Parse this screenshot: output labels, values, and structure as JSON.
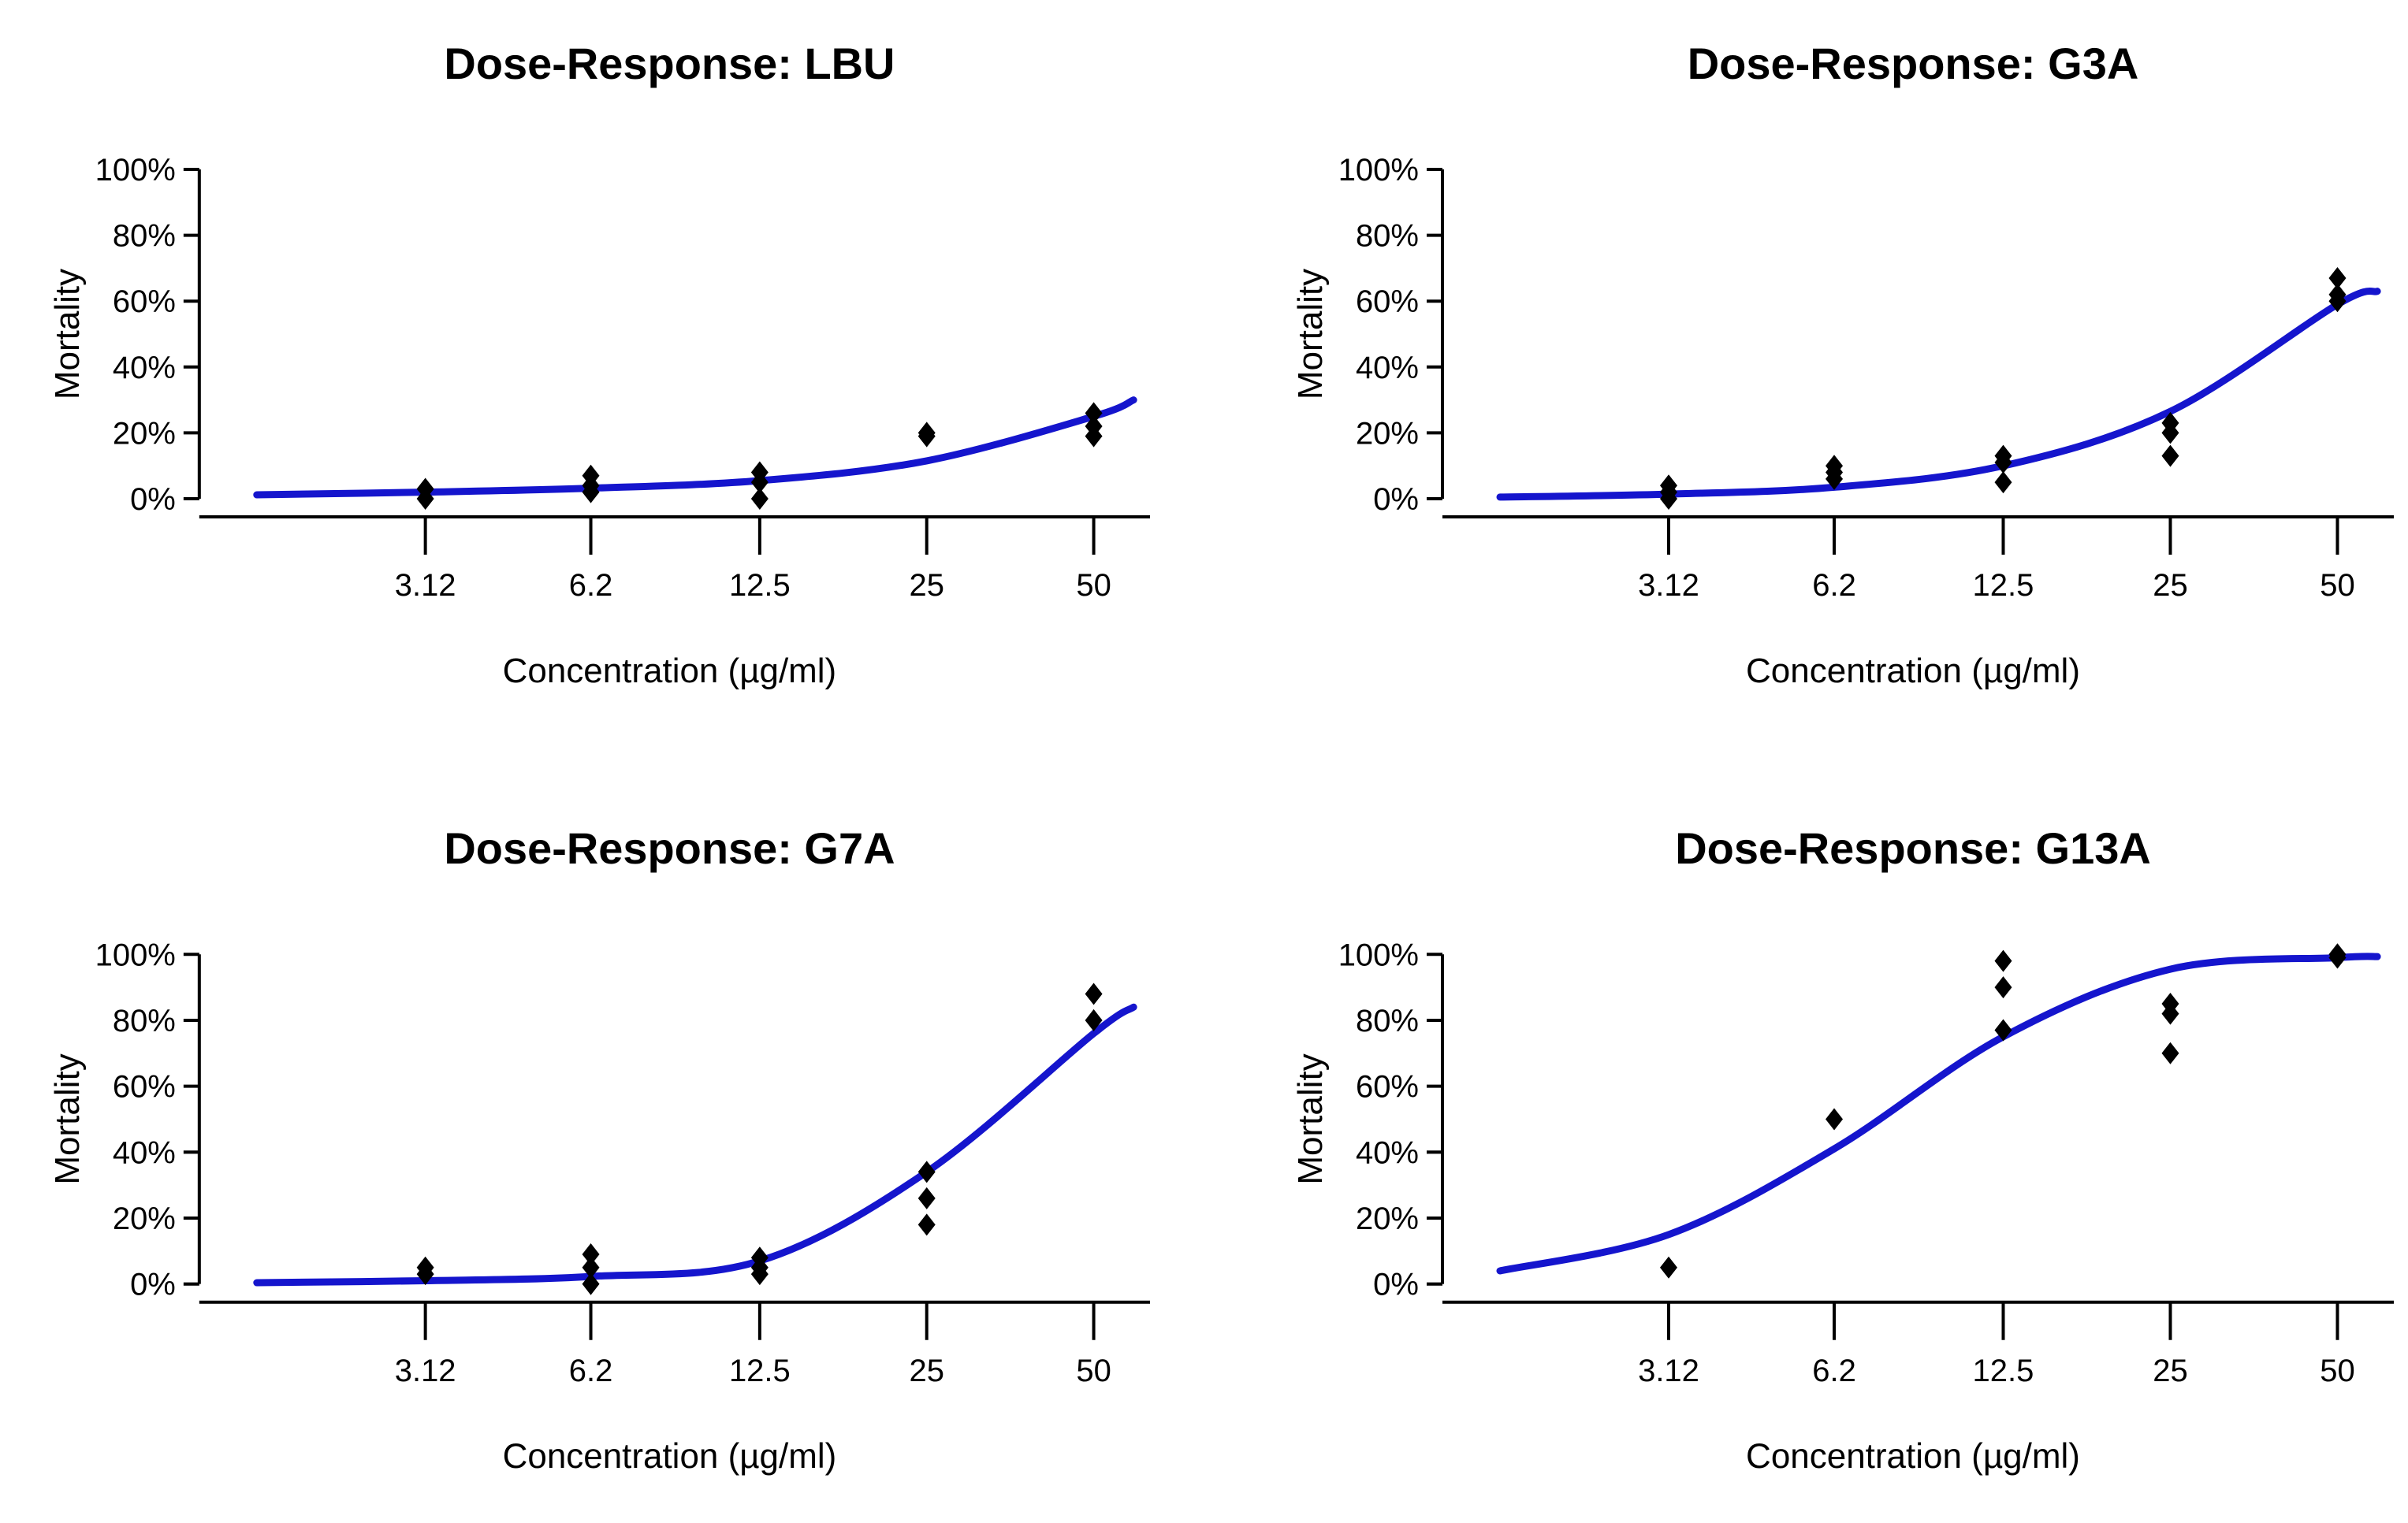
{
  "colors": {
    "curve": "#1515cd",
    "points": "#000000",
    "text": "#000000",
    "background": "#ffffff"
  },
  "chart_data": [
    {
      "type": "scatter",
      "title": "Dose-Response: LBU",
      "xlabel": "Concentration (µg/ml)",
      "ylabel": "Mortality",
      "x_scale": "log",
      "xlim": [
        1.55,
        59
      ],
      "ylim": [
        0,
        100
      ],
      "grid": false,
      "legend": "none",
      "x_tick_values": [
        3.12,
        6.2,
        12.5,
        25,
        50
      ],
      "x_tick_labels": [
        "3.12",
        "6.2",
        "12.5",
        "25",
        "50"
      ],
      "y_tick_values": [
        0,
        20,
        40,
        60,
        80,
        100
      ],
      "y_tick_labels": [
        "0%",
        "20%",
        "40%",
        "60%",
        "80%",
        "100%"
      ],
      "points_pct": [
        {
          "x": 3.12,
          "y": [
            0,
            3
          ]
        },
        {
          "x": 6.2,
          "y": [
            2,
            4,
            7
          ]
        },
        {
          "x": 12.5,
          "y": [
            0,
            5,
            8
          ]
        },
        {
          "x": 25,
          "y": [
            19,
            20
          ]
        },
        {
          "x": 50,
          "y": [
            19,
            22,
            26
          ]
        }
      ],
      "fit_curve_pct": [
        [
          1.55,
          1.2
        ],
        [
          3.12,
          2
        ],
        [
          6.2,
          3.2
        ],
        [
          12.5,
          5.5
        ],
        [
          25,
          11.5
        ],
        [
          50,
          25
        ],
        [
          59,
          30
        ]
      ]
    },
    {
      "type": "scatter",
      "title": "Dose-Response: G3A",
      "xlabel": "Concentration (µg/ml)",
      "ylabel": "Mortality",
      "x_scale": "log",
      "xlim": [
        1.55,
        59
      ],
      "ylim": [
        0,
        100
      ],
      "grid": false,
      "legend": "none",
      "x_tick_values": [
        3.12,
        6.2,
        12.5,
        25,
        50
      ],
      "x_tick_labels": [
        "3.12",
        "6.2",
        "12.5",
        "25",
        "50"
      ],
      "y_tick_values": [
        0,
        20,
        40,
        60,
        80,
        100
      ],
      "y_tick_labels": [
        "0%",
        "20%",
        "40%",
        "60%",
        "80%",
        "100%"
      ],
      "points_pct": [
        {
          "x": 3.12,
          "y": [
            0,
            2,
            4
          ]
        },
        {
          "x": 6.2,
          "y": [
            6,
            8,
            10
          ]
        },
        {
          "x": 12.5,
          "y": [
            5,
            11,
            13
          ]
        },
        {
          "x": 25,
          "y": [
            13,
            20,
            23
          ]
        },
        {
          "x": 50,
          "y": [
            60,
            62,
            67
          ]
        }
      ],
      "fit_curve_pct": [
        [
          1.55,
          0.5
        ],
        [
          3.12,
          1.4
        ],
        [
          6.2,
          3.5
        ],
        [
          12.5,
          10
        ],
        [
          25,
          26.5
        ],
        [
          50,
          59
        ],
        [
          59,
          63
        ]
      ]
    },
    {
      "type": "scatter",
      "title": "Dose-Response: G7A",
      "xlabel": "Concentration (µg/ml)",
      "ylabel": "Mortality",
      "x_scale": "log",
      "xlim": [
        1.55,
        59
      ],
      "ylim": [
        0,
        100
      ],
      "grid": false,
      "legend": "none",
      "x_tick_values": [
        3.12,
        6.2,
        12.5,
        25,
        50
      ],
      "x_tick_labels": [
        "3.12",
        "6.2",
        "12.5",
        "25",
        "50"
      ],
      "y_tick_values": [
        0,
        20,
        40,
        60,
        80,
        100
      ],
      "y_tick_labels": [
        "0%",
        "20%",
        "40%",
        "60%",
        "80%",
        "100%"
      ],
      "points_pct": [
        {
          "x": 3.12,
          "y": [
            3,
            5
          ]
        },
        {
          "x": 6.2,
          "y": [
            0,
            5,
            9
          ]
        },
        {
          "x": 12.5,
          "y": [
            3,
            5,
            8
          ]
        },
        {
          "x": 25,
          "y": [
            18,
            26,
            34
          ]
        },
        {
          "x": 50,
          "y": [
            80,
            88
          ]
        }
      ],
      "fit_curve_pct": [
        [
          1.55,
          0.4
        ],
        [
          3.12,
          1
        ],
        [
          6.2,
          2.3
        ],
        [
          12.5,
          7
        ],
        [
          25,
          34
        ],
        [
          50,
          76
        ],
        [
          59,
          84
        ]
      ]
    },
    {
      "type": "scatter",
      "title": "Dose-Response: G13A",
      "xlabel": "Concentration (µg/ml)",
      "ylabel": "Mortality",
      "x_scale": "log",
      "xlim": [
        1.55,
        59
      ],
      "ylim": [
        0,
        100
      ],
      "grid": false,
      "legend": "none",
      "x_tick_values": [
        3.12,
        6.2,
        12.5,
        25,
        50
      ],
      "x_tick_labels": [
        "3.12",
        "6.2",
        "12.5",
        "25",
        "50"
      ],
      "y_tick_values": [
        0,
        20,
        40,
        60,
        80,
        100
      ],
      "y_tick_labels": [
        "0%",
        "20%",
        "40%",
        "60%",
        "80%",
        "100%"
      ],
      "points_pct": [
        {
          "x": 3.12,
          "y": [
            5
          ]
        },
        {
          "x": 6.2,
          "y": [
            50
          ]
        },
        {
          "x": 12.5,
          "y": [
            77,
            90,
            98
          ]
        },
        {
          "x": 25,
          "y": [
            70,
            82,
            85
          ]
        },
        {
          "x": 50,
          "y": [
            99,
            100
          ]
        }
      ],
      "fit_curve_pct": [
        [
          1.55,
          4
        ],
        [
          3.12,
          15
        ],
        [
          6.2,
          41
        ],
        [
          12.5,
          75
        ],
        [
          25,
          95.5
        ],
        [
          50,
          99
        ],
        [
          59,
          99.3
        ]
      ]
    }
  ]
}
